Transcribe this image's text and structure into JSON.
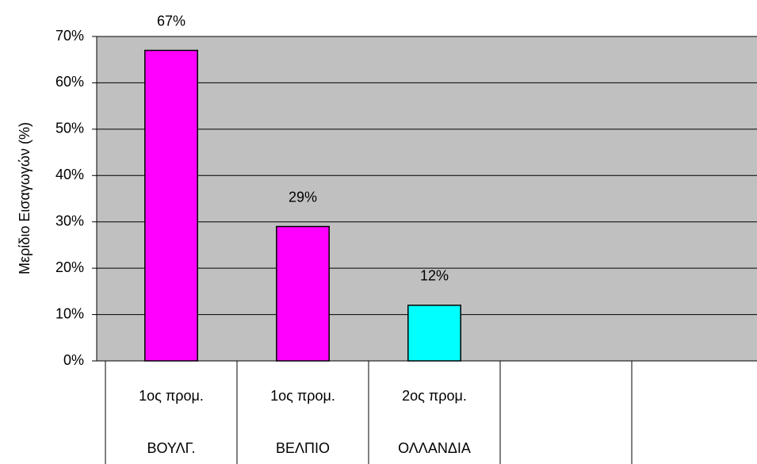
{
  "chart_data": {
    "type": "bar",
    "y_label": "Μερίδιο Εισαγωγών (%)",
    "categories": [
      [
        "1ος προμ.",
        "ΒΟΥΛΓ."
      ],
      [
        "1ος προμ.",
        "ΒΕΛΠΙΟ"
      ],
      [
        "2ος προμ.",
        "ΟΛΛΑΝΔΙΑ"
      ],
      null,
      null
    ],
    "values": [
      67,
      29,
      12,
      null,
      null
    ],
    "value_labels": [
      "67%",
      "29%",
      "12%",
      null,
      null
    ],
    "colors": [
      "#ff00ff",
      "#ff00ff",
      "#00ffff",
      null,
      null
    ],
    "ylim": [
      0,
      70
    ],
    "yticks": [
      {
        "value": 0,
        "label": "0%"
      },
      {
        "value": 10,
        "label": "10%"
      },
      {
        "value": 20,
        "label": "20%"
      },
      {
        "value": 30,
        "label": "30%"
      },
      {
        "value": 40,
        "label": "40%"
      },
      {
        "value": 50,
        "label": "50%"
      },
      {
        "value": 60,
        "label": "60%"
      },
      {
        "value": 70,
        "label": "70%"
      }
    ],
    "grid": true
  }
}
